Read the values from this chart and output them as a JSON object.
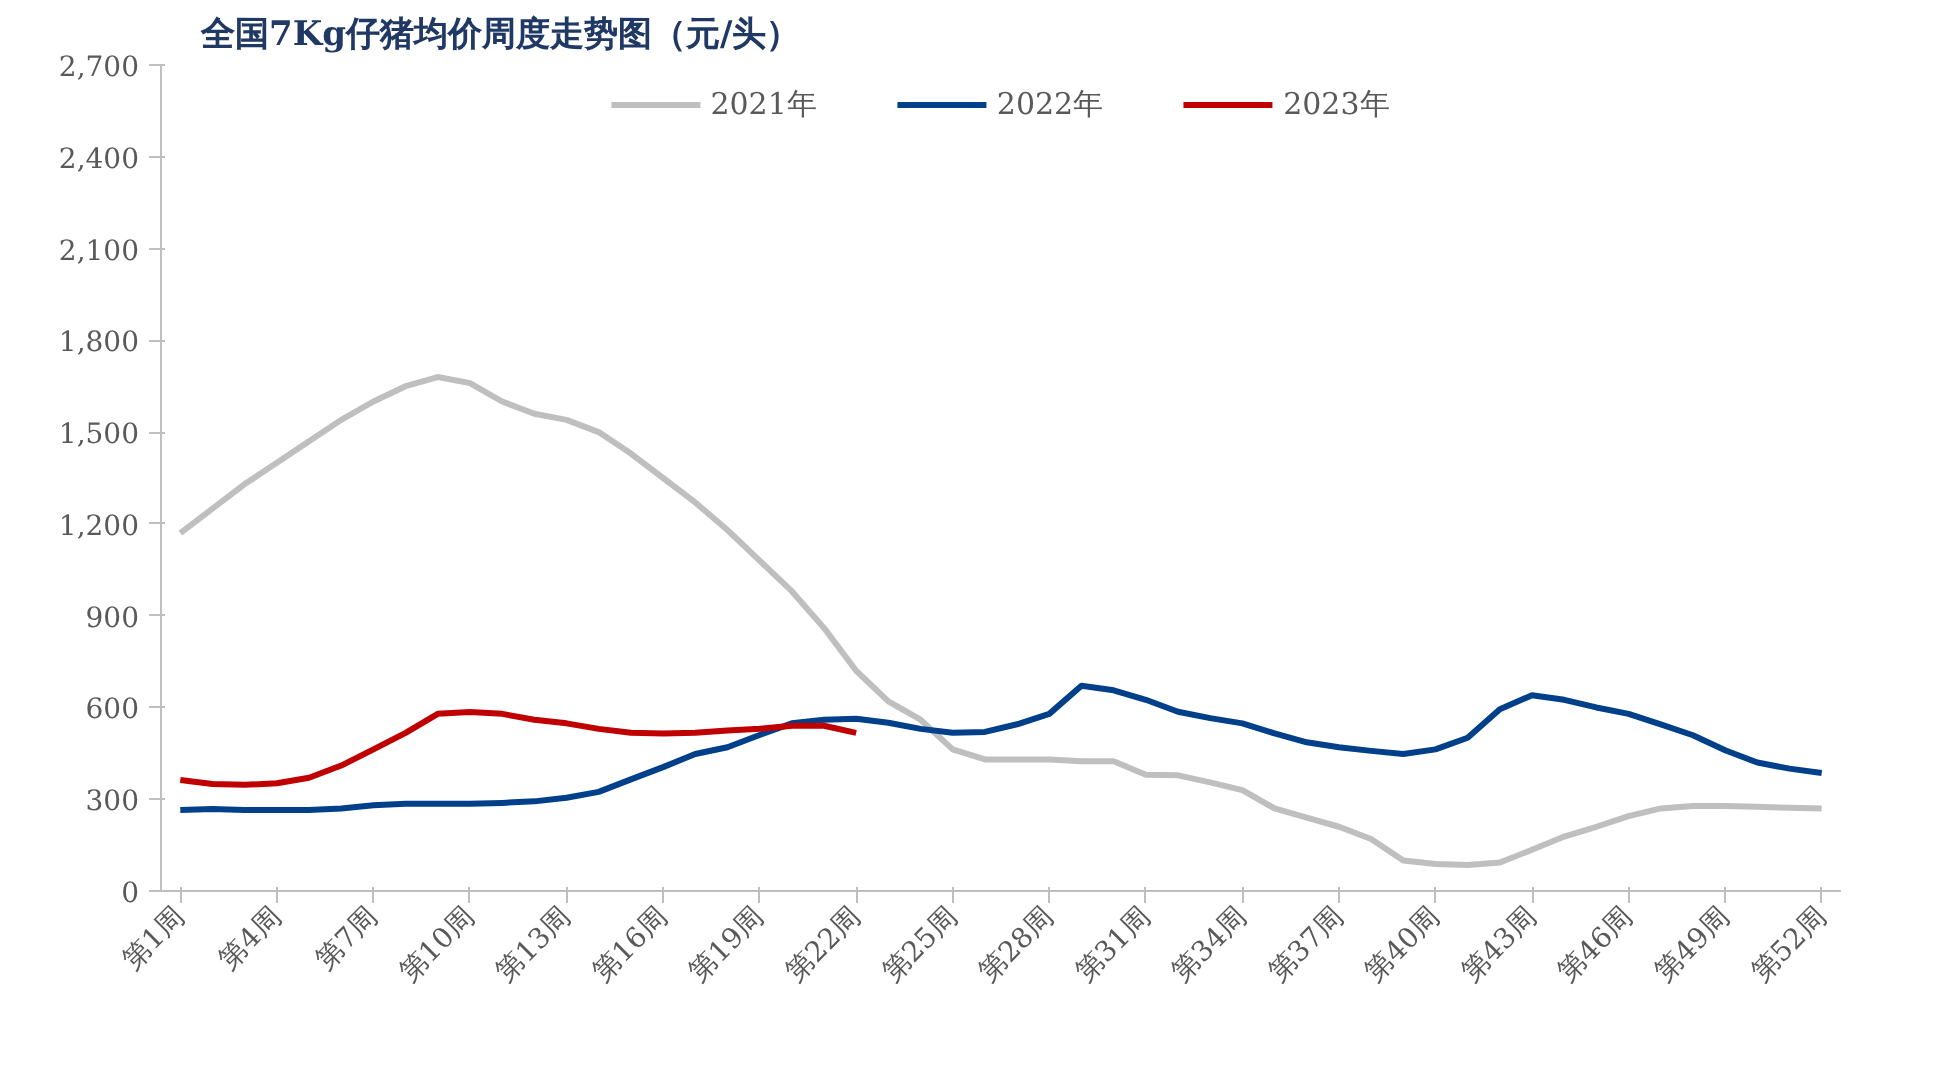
{
  "chart_data": {
    "type": "line",
    "title": "全国7Kg仔猪均价周度走势图（元/头）",
    "categories": [
      "第1周",
      null,
      null,
      "第4周",
      null,
      null,
      "第7周",
      null,
      null,
      "第10周",
      null,
      null,
      "第13周",
      null,
      null,
      "第16周",
      null,
      null,
      "第19周",
      null,
      null,
      "第22周",
      null,
      null,
      "第25周",
      null,
      null,
      "第28周",
      null,
      null,
      "第31周",
      null,
      null,
      "第34周",
      null,
      null,
      "第37周",
      null,
      null,
      "第40周",
      null,
      null,
      "第43周",
      null,
      null,
      "第46周",
      null,
      null,
      "第49周",
      null,
      null,
      "第52周"
    ],
    "series": [
      {
        "name": "2021年",
        "color": "#bfbfbf",
        "values": [
          1170,
          1250,
          1330,
          1400,
          1470,
          1540,
          1600,
          1650,
          1680,
          1660,
          1600,
          1560,
          1540,
          1500,
          1430,
          1350,
          1270,
          1180,
          1080,
          980,
          860,
          720,
          620,
          560,
          463,
          430,
          430,
          430,
          424,
          424,
          380,
          378,
          355,
          330,
          270,
          240,
          210,
          170,
          100,
          88,
          85,
          93,
          135,
          178,
          210,
          245,
          270,
          278,
          278,
          275,
          272,
          270
        ]
      },
      {
        "name": "2022年",
        "color": "#003f8a",
        "values": [
          265,
          268,
          265,
          265,
          265,
          270,
          280,
          285,
          285,
          285,
          288,
          293,
          305,
          324,
          365,
          405,
          448,
          470,
          510,
          548,
          560,
          563,
          550,
          530,
          517,
          520,
          545,
          579,
          671,
          656,
          625,
          586,
          565,
          548,
          515,
          486,
          470,
          458,
          448,
          463,
          501,
          594,
          640,
          625,
          600,
          579,
          545,
          509,
          460,
          420,
          400,
          386
        ]
      },
      {
        "name": "2023年",
        "color": "#c00000",
        "values": [
          363,
          350,
          347,
          352,
          370,
          410,
          463,
          517,
          579,
          585,
          579,
          560,
          548,
          530,
          517,
          515,
          517,
          525,
          530,
          540,
          540,
          517,
          null,
          null,
          null,
          null,
          null,
          null,
          null,
          null,
          null,
          null,
          null,
          null,
          null,
          null,
          null,
          null,
          null,
          null,
          null,
          null,
          null,
          null,
          null,
          null,
          null,
          null,
          null,
          null,
          null,
          null
        ]
      }
    ],
    "ylim": [
      0,
      2700
    ],
    "yticks": [
      0,
      {
        "value": 300,
        "label": "300"
      },
      {
        "value": 600,
        "label": "600"
      },
      {
        "value": 900,
        "label": "900"
      },
      {
        "value": 1200,
        "label": "1,200"
      },
      {
        "value": 1500,
        "label": "1,500"
      },
      {
        "value": 1800,
        "label": "1,800"
      },
      {
        "value": 2100,
        "label": "2,100"
      },
      {
        "value": 2400,
        "label": "2,400"
      },
      {
        "value": 2700,
        "label": "2,700"
      }
    ],
    "legend": "top",
    "line_style": "solid",
    "grid": false
  }
}
